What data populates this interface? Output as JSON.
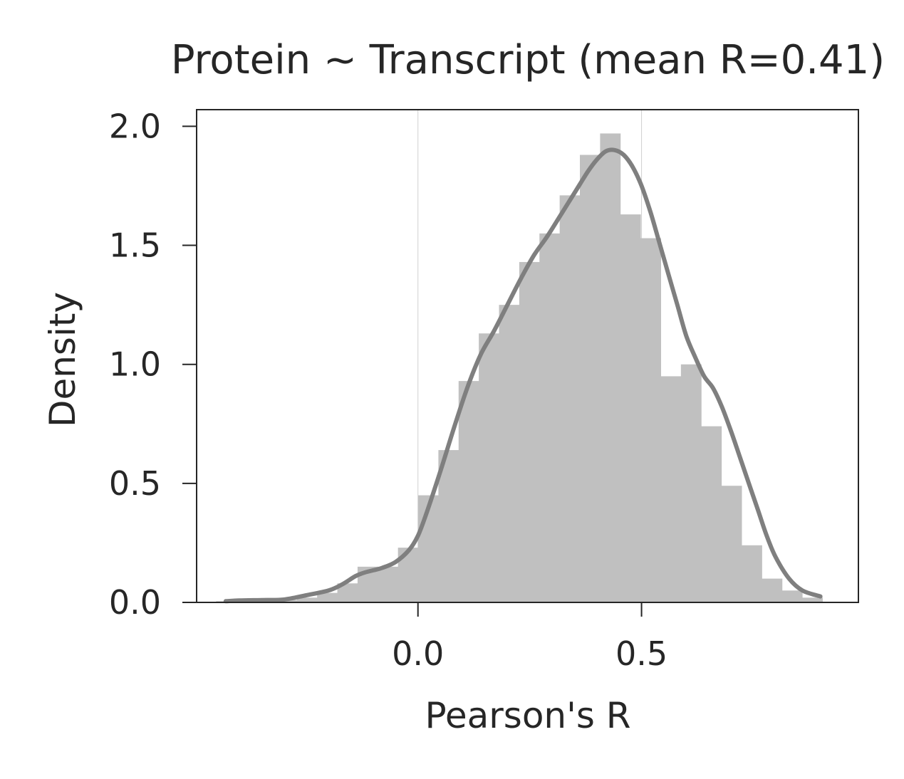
{
  "chart_data": {
    "type": "histogram",
    "title": "Protein ~ Transcript (mean R=0.41)",
    "xlabel": "Pearson's R",
    "ylabel": "Density",
    "xlim": [
      -0.495,
      0.985
    ],
    "ylim": [
      0.0,
      2.07
    ],
    "xticks": [
      0.0,
      0.5
    ],
    "xtick_labels": [
      "0.0",
      "0.5"
    ],
    "yticks": [
      0.0,
      0.5,
      1.0,
      1.5,
      2.0
    ],
    "ytick_labels": [
      "0.0",
      "0.5",
      "1.0",
      "1.5",
      "2.0"
    ],
    "grid": "vertical lines at x ticks",
    "colors": {
      "bars": "#c0c0c0",
      "kde_line": "#7f7f7f",
      "axes": "#262626",
      "grid": "#d0d0d0"
    },
    "histogram": {
      "bin_edges": [
        -0.4515,
        -0.4063,
        -0.3611,
        -0.3159,
        -0.2707,
        -0.2255,
        -0.1803,
        -0.1351,
        -0.0899,
        -0.0447,
        0.0005,
        0.0457,
        0.0909,
        0.1361,
        0.1813,
        0.2265,
        0.2717,
        0.3169,
        0.3621,
        0.4073,
        0.4525,
        0.4977,
        0.5429,
        0.5881,
        0.6333,
        0.6785,
        0.7237,
        0.7689,
        0.8141,
        0.8593,
        0.9045
      ],
      "density": [
        0.005,
        0.005,
        0.005,
        0.01,
        0.02,
        0.04,
        0.08,
        0.15,
        0.15,
        0.23,
        0.45,
        0.64,
        0.93,
        1.13,
        1.25,
        1.43,
        1.55,
        1.71,
        1.88,
        1.97,
        1.63,
        1.53,
        0.95,
        1.0,
        0.74,
        0.49,
        0.24,
        0.1,
        0.05,
        0.02
      ]
    },
    "kde": {
      "x": [
        -0.43,
        -0.4,
        -0.35,
        -0.3,
        -0.25,
        -0.2,
        -0.17,
        -0.14,
        -0.12,
        -0.1,
        -0.08,
        -0.05,
        -0.02,
        0.0,
        0.02,
        0.05,
        0.08,
        0.11,
        0.14,
        0.17,
        0.2,
        0.23,
        0.26,
        0.29,
        0.32,
        0.35,
        0.38,
        0.4,
        0.42,
        0.44,
        0.46,
        0.48,
        0.5,
        0.52,
        0.54,
        0.56,
        0.58,
        0.6,
        0.62,
        0.64,
        0.66,
        0.68,
        0.7,
        0.72,
        0.74,
        0.76,
        0.78,
        0.8,
        0.83,
        0.86,
        0.9
      ],
      "y": [
        0.005,
        0.008,
        0.01,
        0.012,
        0.03,
        0.05,
        0.075,
        0.11,
        0.125,
        0.135,
        0.145,
        0.17,
        0.22,
        0.28,
        0.38,
        0.55,
        0.73,
        0.9,
        1.04,
        1.14,
        1.25,
        1.36,
        1.46,
        1.54,
        1.63,
        1.72,
        1.81,
        1.86,
        1.895,
        1.9,
        1.88,
        1.83,
        1.75,
        1.64,
        1.51,
        1.38,
        1.25,
        1.12,
        1.03,
        0.95,
        0.9,
        0.82,
        0.72,
        0.61,
        0.5,
        0.39,
        0.28,
        0.19,
        0.1,
        0.05,
        0.025
      ]
    }
  }
}
